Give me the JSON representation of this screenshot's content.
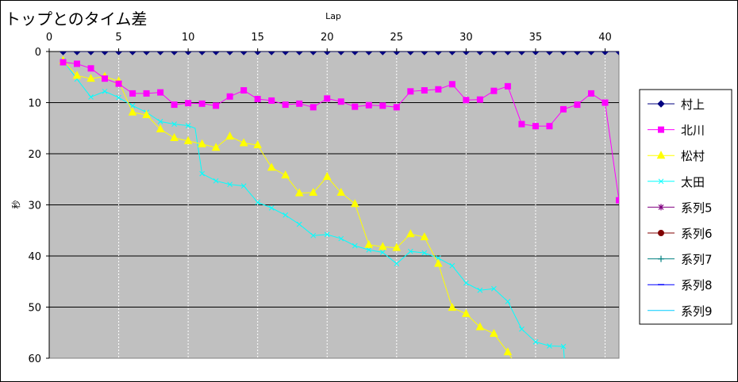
{
  "chart_data": {
    "type": "line",
    "title": "トップとのタイム差",
    "xlabel": "Lap",
    "ylabel": "秒",
    "xlim": [
      0,
      41
    ],
    "ylim": [
      0,
      60
    ],
    "y_inverted": true,
    "x_axis_position": "top",
    "x_ticks": [
      0,
      5,
      10,
      15,
      20,
      25,
      30,
      35,
      40
    ],
    "y_ticks": [
      0,
      10,
      20,
      30,
      40,
      50,
      60
    ],
    "grid": "horizontal solid, vertical dashed",
    "plot_background": "#c0c0c0",
    "legend_position": "right",
    "series": [
      {
        "name": "村上",
        "color": "#000080",
        "marker": "diamond",
        "points": [
          [
            1,
            0
          ],
          [
            2,
            0
          ],
          [
            3,
            0
          ],
          [
            4,
            0
          ],
          [
            5,
            0
          ],
          [
            6,
            0
          ],
          [
            7,
            0
          ],
          [
            8,
            0
          ],
          [
            9,
            0
          ],
          [
            10,
            0
          ],
          [
            11,
            0
          ],
          [
            12,
            0
          ],
          [
            13,
            0
          ],
          [
            14,
            0
          ],
          [
            15,
            0
          ],
          [
            16,
            0
          ],
          [
            17,
            0
          ],
          [
            18,
            0
          ],
          [
            19,
            0
          ],
          [
            20,
            0
          ],
          [
            21,
            0
          ],
          [
            22,
            0
          ],
          [
            23,
            0
          ],
          [
            24,
            0
          ],
          [
            25,
            0
          ],
          [
            26,
            0
          ],
          [
            27,
            0
          ],
          [
            28,
            0
          ],
          [
            29,
            0
          ],
          [
            30,
            0
          ],
          [
            31,
            0
          ],
          [
            32,
            0
          ],
          [
            33,
            0
          ],
          [
            34,
            0
          ],
          [
            35,
            0
          ],
          [
            36,
            0
          ],
          [
            37,
            0
          ],
          [
            38,
            0
          ],
          [
            39,
            0
          ],
          [
            40,
            0
          ],
          [
            41,
            0
          ]
        ]
      },
      {
        "name": "北川",
        "color": "#ff00ff",
        "marker": "square",
        "points": [
          [
            1,
            2.1
          ],
          [
            2,
            2.4
          ],
          [
            3,
            3.3
          ],
          [
            4,
            5.3
          ],
          [
            5,
            6.3
          ],
          [
            6,
            8.2
          ],
          [
            7,
            8.2
          ],
          [
            8,
            8.0
          ],
          [
            9,
            10.4
          ],
          [
            10,
            10.1
          ],
          [
            11,
            10.2
          ],
          [
            12,
            10.6
          ],
          [
            13,
            8.8
          ],
          [
            14,
            7.6
          ],
          [
            15,
            9.3
          ],
          [
            16,
            9.6
          ],
          [
            17,
            10.4
          ],
          [
            18,
            10.2
          ],
          [
            19,
            10.9
          ],
          [
            20,
            9.2
          ],
          [
            21,
            9.8
          ],
          [
            22,
            10.8
          ],
          [
            23,
            10.5
          ],
          [
            24,
            10.6
          ],
          [
            25,
            10.9
          ],
          [
            26,
            7.8
          ],
          [
            27,
            7.6
          ],
          [
            28,
            7.4
          ],
          [
            29,
            6.4
          ],
          [
            30,
            9.5
          ],
          [
            31,
            9.4
          ],
          [
            32,
            7.7
          ],
          [
            33,
            6.8
          ],
          [
            34,
            14.2
          ],
          [
            35,
            14.6
          ],
          [
            36,
            14.6
          ],
          [
            37,
            11.3
          ],
          [
            38,
            10.4
          ],
          [
            39,
            8.2
          ],
          [
            40,
            10.0
          ],
          [
            41,
            29.1
          ]
        ]
      },
      {
        "name": "松村",
        "color": "#ffff00",
        "marker": "triangle",
        "points": [
          [
            1,
            1.8
          ],
          [
            2,
            4.7
          ],
          [
            3,
            5.3
          ],
          [
            4,
            4.9
          ],
          [
            5,
            5.8
          ],
          [
            6,
            11.9
          ],
          [
            7,
            12.4
          ],
          [
            8,
            15.2
          ],
          [
            9,
            16.9
          ],
          [
            10,
            17.5
          ],
          [
            11,
            18.1
          ],
          [
            12,
            18.8
          ],
          [
            13,
            16.6
          ],
          [
            14,
            17.9
          ],
          [
            15,
            18.3
          ],
          [
            16,
            22.7
          ],
          [
            17,
            24.2
          ],
          [
            18,
            27.7
          ],
          [
            19,
            27.6
          ],
          [
            20,
            24.5
          ],
          [
            21,
            27.6
          ],
          [
            22,
            29.8
          ],
          [
            23,
            37.8
          ],
          [
            24,
            38.2
          ],
          [
            25,
            38.4
          ],
          [
            26,
            35.7
          ],
          [
            27,
            36.3
          ],
          [
            28,
            41.5
          ],
          [
            29,
            50.1
          ],
          [
            30,
            51.3
          ],
          [
            31,
            53.9
          ],
          [
            32,
            55.2
          ],
          [
            33,
            58.8
          ],
          [
            33.5,
            61
          ]
        ]
      },
      {
        "name": "太田",
        "color": "#00ffff",
        "marker": "x",
        "points": [
          [
            1,
            1.8
          ],
          [
            2,
            5.4
          ],
          [
            3,
            8.9
          ],
          [
            4,
            7.8
          ],
          [
            5,
            9.0
          ],
          [
            6,
            10.6
          ],
          [
            7,
            11.9
          ],
          [
            8,
            13.7
          ],
          [
            9,
            14.2
          ],
          [
            10,
            14.5
          ],
          [
            10.5,
            15.0
          ],
          [
            11,
            23.9
          ],
          [
            12,
            25.3
          ],
          [
            13,
            26.0
          ],
          [
            14,
            26.3
          ],
          [
            15,
            29.5
          ],
          [
            16,
            30.6
          ],
          [
            17,
            32.0
          ],
          [
            18,
            33.8
          ],
          [
            19,
            36.0
          ],
          [
            20,
            35.8
          ],
          [
            21,
            36.6
          ],
          [
            22,
            38.0
          ],
          [
            23,
            38.8
          ],
          [
            24,
            39.3
          ],
          [
            25,
            41.5
          ],
          [
            26,
            39.1
          ],
          [
            27,
            39.4
          ],
          [
            28,
            40.4
          ],
          [
            29,
            41.9
          ],
          [
            30,
            45.3
          ],
          [
            31,
            46.7
          ],
          [
            32,
            46.4
          ],
          [
            33,
            48.9
          ],
          [
            34,
            54.3
          ],
          [
            35,
            56.8
          ],
          [
            36,
            57.6
          ],
          [
            37,
            57.7
          ],
          [
            37.1,
            61
          ]
        ]
      },
      {
        "name": "系列5",
        "color": "#800080",
        "marker": "star",
        "points": [
          [
            1,
            0
          ]
        ]
      },
      {
        "name": "系列6",
        "color": "#800000",
        "marker": "circle",
        "points": [
          [
            1,
            0
          ]
        ]
      },
      {
        "name": "系列7",
        "color": "#008080",
        "marker": "plus",
        "points": [
          [
            1,
            0
          ]
        ]
      },
      {
        "name": "系列8",
        "color": "#0000ff",
        "marker": "dash",
        "points": [
          [
            1,
            0
          ]
        ]
      },
      {
        "name": "系列9",
        "color": "#00ccff",
        "marker": "none",
        "points": [
          [
            1,
            0
          ]
        ]
      }
    ]
  }
}
